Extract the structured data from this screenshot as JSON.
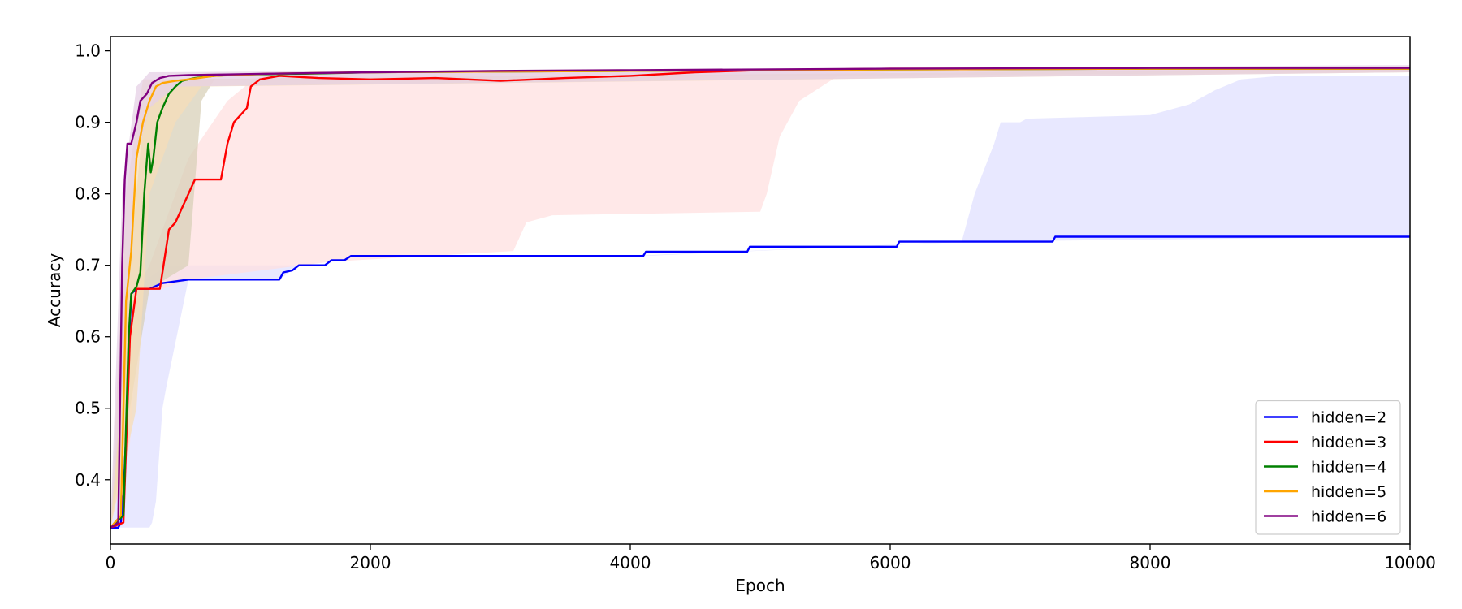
{
  "chart_data": {
    "type": "line",
    "title": "",
    "xlabel": "Epoch",
    "ylabel": "Accuracy",
    "xlim": [
      0,
      10000
    ],
    "ylim": [
      0.31,
      1.02
    ],
    "x_ticks": [
      0,
      2000,
      4000,
      6000,
      8000,
      10000
    ],
    "x_tick_labels": [
      "0",
      "2000",
      "4000",
      "6000",
      "8000",
      "10000"
    ],
    "y_ticks": [
      0.4,
      0.5,
      0.6,
      0.7,
      0.8,
      0.9,
      1.0
    ],
    "y_tick_labels": [
      "0.4",
      "0.5",
      "0.6",
      "0.7",
      "0.8",
      "0.9",
      "1.0"
    ],
    "grid": false,
    "legend_position": "lower-right",
    "series": [
      {
        "name": "hidden=2",
        "color": "#0000ff",
        "band_color": "#e0e0ff",
        "points": [
          [
            0,
            0.333
          ],
          [
            60,
            0.333
          ],
          [
            80,
            0.34
          ],
          [
            100,
            0.38
          ],
          [
            120,
            0.46
          ],
          [
            140,
            0.58
          ],
          [
            160,
            0.66
          ],
          [
            200,
            0.667
          ],
          [
            300,
            0.667
          ],
          [
            400,
            0.675
          ],
          [
            600,
            0.68
          ],
          [
            1300,
            0.68
          ],
          [
            1330,
            0.69
          ],
          [
            1400,
            0.693
          ],
          [
            1450,
            0.7
          ],
          [
            1650,
            0.7
          ],
          [
            1700,
            0.707
          ],
          [
            1800,
            0.707
          ],
          [
            1850,
            0.713
          ],
          [
            4100,
            0.713
          ],
          [
            4120,
            0.719
          ],
          [
            4900,
            0.719
          ],
          [
            4920,
            0.726
          ],
          [
            6050,
            0.726
          ],
          [
            6070,
            0.733
          ],
          [
            7250,
            0.733
          ],
          [
            7270,
            0.74
          ],
          [
            10000,
            0.74
          ]
        ],
        "band_lower": [
          [
            0,
            0.333
          ],
          [
            300,
            0.333
          ],
          [
            320,
            0.34
          ],
          [
            350,
            0.37
          ],
          [
            400,
            0.5
          ],
          [
            430,
            0.53
          ],
          [
            600,
            0.68
          ],
          [
            1300,
            0.68
          ],
          [
            1450,
            0.7
          ],
          [
            1850,
            0.713
          ],
          [
            4100,
            0.713
          ],
          [
            6600,
            0.733
          ],
          [
            10000,
            0.74
          ]
        ],
        "band_upper": [
          [
            0,
            0.333
          ],
          [
            150,
            0.62
          ],
          [
            200,
            0.67
          ],
          [
            430,
            0.7
          ],
          [
            600,
            0.7
          ],
          [
            1450,
            0.7
          ],
          [
            1850,
            0.713
          ],
          [
            4000,
            0.713
          ],
          [
            6550,
            0.733
          ],
          [
            6650,
            0.8
          ],
          [
            6800,
            0.87
          ],
          [
            6850,
            0.9
          ],
          [
            7000,
            0.9
          ],
          [
            7050,
            0.905
          ],
          [
            8000,
            0.91
          ],
          [
            8300,
            0.925
          ],
          [
            8500,
            0.945
          ],
          [
            8700,
            0.96
          ],
          [
            9000,
            0.965
          ],
          [
            10000,
            0.965
          ]
        ]
      },
      {
        "name": "hidden=3",
        "color": "#ff0000",
        "band_color": "#ffe0e0",
        "points": [
          [
            0,
            0.333
          ],
          [
            100,
            0.34
          ],
          [
            150,
            0.6
          ],
          [
            200,
            0.667
          ],
          [
            380,
            0.667
          ],
          [
            400,
            0.69
          ],
          [
            450,
            0.75
          ],
          [
            500,
            0.76
          ],
          [
            550,
            0.78
          ],
          [
            600,
            0.8
          ],
          [
            650,
            0.82
          ],
          [
            850,
            0.82
          ],
          [
            900,
            0.87
          ],
          [
            950,
            0.9
          ],
          [
            1000,
            0.91
          ],
          [
            1050,
            0.92
          ],
          [
            1080,
            0.95
          ],
          [
            1150,
            0.96
          ],
          [
            1300,
            0.965
          ],
          [
            1600,
            0.962
          ],
          [
            2000,
            0.96
          ],
          [
            2500,
            0.962
          ],
          [
            3000,
            0.958
          ],
          [
            3500,
            0.962
          ],
          [
            4000,
            0.965
          ],
          [
            4500,
            0.97
          ],
          [
            5000,
            0.973
          ],
          [
            6000,
            0.975
          ],
          [
            7000,
            0.975
          ],
          [
            8000,
            0.975
          ],
          [
            9000,
            0.975
          ],
          [
            10000,
            0.975
          ]
        ],
        "band_lower": [
          [
            0,
            0.333
          ],
          [
            150,
            0.45
          ],
          [
            200,
            0.6
          ],
          [
            300,
            0.667
          ],
          [
            400,
            0.667
          ],
          [
            600,
            0.68
          ],
          [
            1700,
            0.705
          ],
          [
            3100,
            0.72
          ],
          [
            3200,
            0.76
          ],
          [
            3400,
            0.77
          ],
          [
            5000,
            0.775
          ],
          [
            5050,
            0.8
          ],
          [
            5150,
            0.88
          ],
          [
            5300,
            0.93
          ],
          [
            5600,
            0.965
          ],
          [
            6000,
            0.97
          ],
          [
            10000,
            0.97
          ]
        ],
        "band_upper": [
          [
            0,
            0.333
          ],
          [
            100,
            0.6
          ],
          [
            200,
            0.667
          ],
          [
            300,
            0.7
          ],
          [
            600,
            0.85
          ],
          [
            900,
            0.93
          ],
          [
            1100,
            0.96
          ],
          [
            1300,
            0.97
          ],
          [
            10000,
            0.975
          ]
        ]
      },
      {
        "name": "hidden=4",
        "color": "#008000",
        "band_color": "#d8d0b8",
        "points": [
          [
            0,
            0.333
          ],
          [
            100,
            0.35
          ],
          [
            140,
            0.6
          ],
          [
            160,
            0.66
          ],
          [
            200,
            0.67
          ],
          [
            230,
            0.69
          ],
          [
            260,
            0.8
          ],
          [
            290,
            0.87
          ],
          [
            310,
            0.83
          ],
          [
            330,
            0.85
          ],
          [
            360,
            0.9
          ],
          [
            400,
            0.92
          ],
          [
            450,
            0.94
          ],
          [
            500,
            0.95
          ],
          [
            550,
            0.958
          ],
          [
            650,
            0.962
          ],
          [
            800,
            0.965
          ],
          [
            1000,
            0.967
          ],
          [
            1500,
            0.968
          ],
          [
            2000,
            0.97
          ],
          [
            4000,
            0.972
          ],
          [
            6000,
            0.974
          ],
          [
            8000,
            0.975
          ],
          [
            10000,
            0.975
          ]
        ],
        "band_lower": [
          [
            0,
            0.333
          ],
          [
            150,
            0.5
          ],
          [
            300,
            0.667
          ],
          [
            600,
            0.7
          ],
          [
            700,
            0.93
          ],
          [
            800,
            0.96
          ],
          [
            10000,
            0.97
          ]
        ],
        "band_upper": [
          [
            0,
            0.333
          ],
          [
            150,
            0.7
          ],
          [
            250,
            0.9
          ],
          [
            400,
            0.96
          ],
          [
            10000,
            0.975
          ]
        ]
      },
      {
        "name": "hidden=5",
        "color": "#ffa500",
        "band_color": "#f5ddb8",
        "points": [
          [
            0,
            0.333
          ],
          [
            80,
            0.35
          ],
          [
            120,
            0.65
          ],
          [
            160,
            0.72
          ],
          [
            200,
            0.85
          ],
          [
            250,
            0.9
          ],
          [
            300,
            0.93
          ],
          [
            350,
            0.95
          ],
          [
            400,
            0.955
          ],
          [
            500,
            0.958
          ],
          [
            600,
            0.96
          ],
          [
            800,
            0.965
          ],
          [
            1200,
            0.968
          ],
          [
            2000,
            0.97
          ],
          [
            4000,
            0.972
          ],
          [
            6000,
            0.974
          ],
          [
            8000,
            0.975
          ],
          [
            10000,
            0.975
          ]
        ],
        "band_lower": [
          [
            0,
            0.333
          ],
          [
            200,
            0.5
          ],
          [
            300,
            0.8
          ],
          [
            500,
            0.9
          ],
          [
            700,
            0.95
          ],
          [
            10000,
            0.97
          ]
        ],
        "band_upper": [
          [
            0,
            0.333
          ],
          [
            120,
            0.8
          ],
          [
            250,
            0.96
          ],
          [
            10000,
            0.975
          ]
        ]
      },
      {
        "name": "hidden=6",
        "color": "#800080",
        "band_color": "#e6d0e6",
        "points": [
          [
            0,
            0.333
          ],
          [
            60,
            0.34
          ],
          [
            90,
            0.7
          ],
          [
            110,
            0.82
          ],
          [
            130,
            0.87
          ],
          [
            160,
            0.87
          ],
          [
            200,
            0.9
          ],
          [
            230,
            0.93
          ],
          [
            280,
            0.94
          ],
          [
            320,
            0.955
          ],
          [
            380,
            0.962
          ],
          [
            450,
            0.965
          ],
          [
            600,
            0.966
          ],
          [
            900,
            0.967
          ],
          [
            1200,
            0.968
          ],
          [
            2000,
            0.97
          ],
          [
            3000,
            0.972
          ],
          [
            4000,
            0.973
          ],
          [
            6000,
            0.975
          ],
          [
            8000,
            0.976
          ],
          [
            10000,
            0.976
          ]
        ],
        "band_lower": [
          [
            0,
            0.333
          ],
          [
            100,
            0.55
          ],
          [
            200,
            0.85
          ],
          [
            300,
            0.92
          ],
          [
            500,
            0.95
          ],
          [
            10000,
            0.97
          ]
        ],
        "band_upper": [
          [
            0,
            0.333
          ],
          [
            90,
            0.8
          ],
          [
            200,
            0.95
          ],
          [
            300,
            0.97
          ],
          [
            10000,
            0.98
          ]
        ]
      }
    ]
  }
}
